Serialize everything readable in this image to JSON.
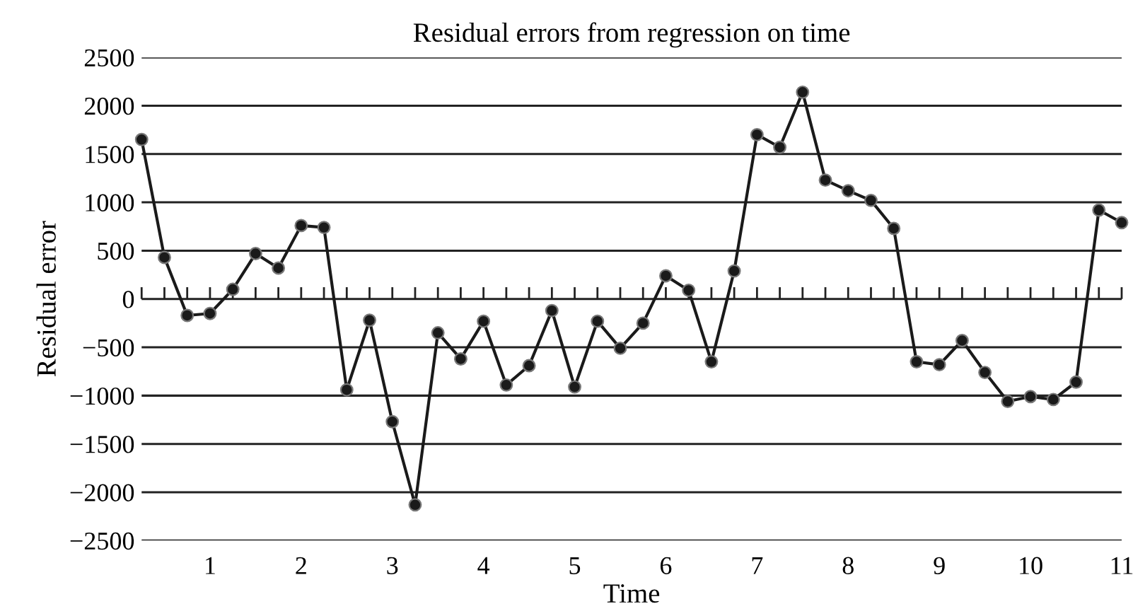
{
  "chart_data": {
    "type": "line",
    "title": "Residual errors from regression on time",
    "xlabel": "Time",
    "ylabel": "Residual error",
    "x": [
      0.25,
      0.5,
      0.75,
      1,
      1.25,
      1.5,
      1.75,
      2,
      2.25,
      2.5,
      2.75,
      3,
      3.25,
      3.5,
      3.75,
      4,
      4.25,
      4.5,
      4.75,
      5,
      5.25,
      5.5,
      5.75,
      6,
      6.25,
      6.5,
      6.75,
      7,
      7.25,
      7.5,
      7.75,
      8,
      8.25,
      8.5,
      8.75,
      9,
      9.25,
      9.5,
      9.75,
      10,
      10.25,
      10.5,
      10.75,
      11
    ],
    "series": [
      {
        "color": "#1a1a1a",
        "values": [
          1650,
          430,
          -170,
          -150,
          100,
          470,
          320,
          760,
          740,
          -940,
          -220,
          -1270,
          -2130,
          -350,
          -620,
          -230,
          -890,
          -690,
          -120,
          -910,
          -230,
          -510,
          -250,
          240,
          90,
          -650,
          290,
          1700,
          1570,
          2140,
          1230,
          1120,
          1020,
          730,
          -650,
          -680,
          -430,
          -760,
          -1060,
          -1010,
          -1040,
          -860,
          920,
          790
        ]
      }
    ],
    "xlim": [
      0.25,
      11
    ],
    "xticks": [
      1,
      2,
      3,
      4,
      5,
      6,
      7,
      8,
      9,
      10,
      11
    ],
    "ylim": [
      -2500,
      2500
    ],
    "yticks": [
      2500,
      2000,
      1500,
      1000,
      500,
      0,
      {
        "value": -500,
        "label": "−500"
      },
      {
        "value": -1000,
        "label": "−1000"
      },
      {
        "value": -1500,
        "label": "−1500"
      },
      {
        "value": -2000,
        "label": "−2000"
      },
      {
        "value": -2500,
        "label": "−2500"
      }
    ],
    "grid": "y",
    "marker": "circle",
    "line_style": "solid",
    "legend": false
  }
}
